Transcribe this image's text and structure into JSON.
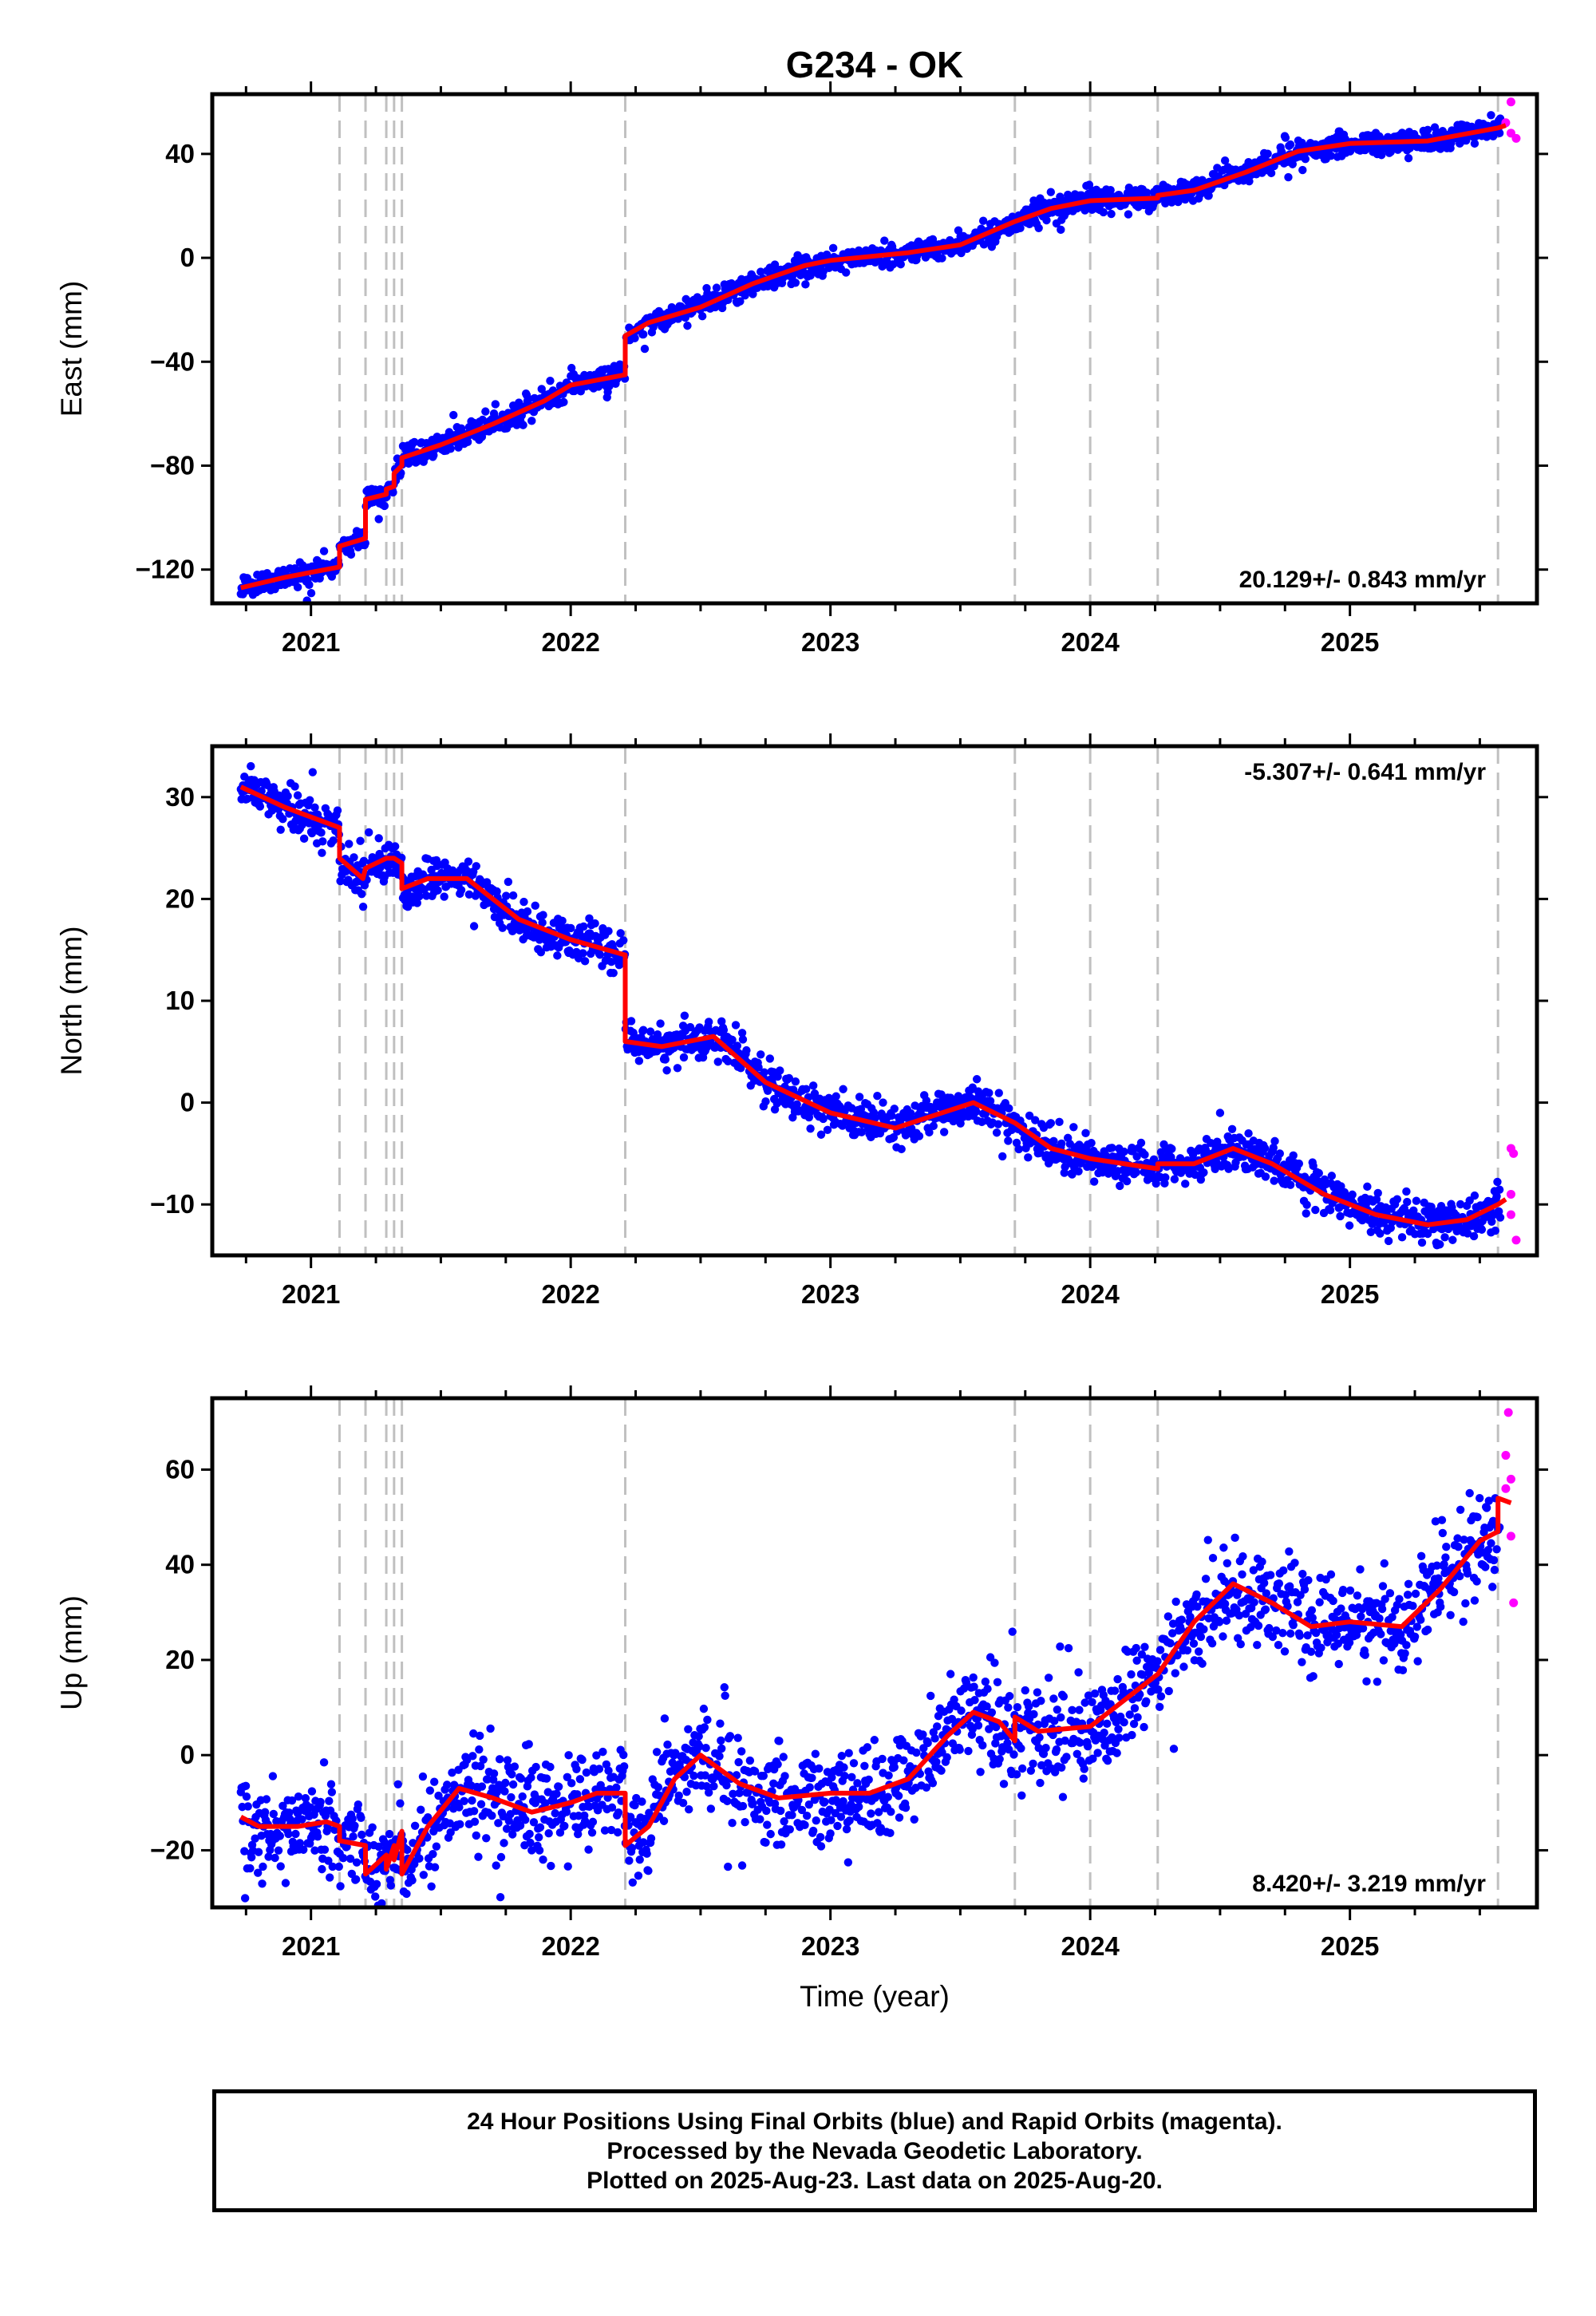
{
  "title": "G234 - OK",
  "colors": {
    "final_orbits": "#0000ff",
    "rapid_orbits": "#ff00ff",
    "model": "#ff0000",
    "event_line": "#c0c0c0"
  },
  "caption": {
    "line1": "24 Hour Positions Using Final Orbits (blue) and Rapid Orbits (magenta).",
    "line2": "Processed by the Nevada Geodetic Laboratory.",
    "line3": "Plotted on 2025-Aug-23. Last data on 2025-Aug-20."
  },
  "chart_data": [
    {
      "type": "scatter",
      "component": "east",
      "title": "G234 - OK",
      "xlabel": "",
      "ylabel": "East (mm)",
      "xlim": [
        2020.62,
        2025.72
      ],
      "ylim": [
        -133,
        63
      ],
      "xticks": [
        2021,
        2022,
        2023,
        2024,
        2025
      ],
      "yticks": [
        -120,
        -80,
        -40,
        0,
        40
      ],
      "rate_label": "20.129+/- 0.843 mm/yr",
      "rate_position": "bottom-right",
      "event_lines": [
        2021.11,
        2021.21,
        2021.29,
        2021.32,
        2021.35,
        2022.21,
        2023.71,
        2024.0,
        2024.26,
        2025.57
      ],
      "model_knots": [
        [
          2020.73,
          -127
        ],
        [
          2020.9,
          -123
        ],
        [
          2021.11,
          -119
        ],
        [
          2021.11,
          -111
        ],
        [
          2021.21,
          -108
        ],
        [
          2021.21,
          -93
        ],
        [
          2021.29,
          -91
        ],
        [
          2021.29,
          -89
        ],
        [
          2021.32,
          -88
        ],
        [
          2021.32,
          -83
        ],
        [
          2021.35,
          -80
        ],
        [
          2021.35,
          -77
        ],
        [
          2021.5,
          -72
        ],
        [
          2021.7,
          -64
        ],
        [
          2021.9,
          -55
        ],
        [
          2022.0,
          -49
        ],
        [
          2022.21,
          -45
        ],
        [
          2022.21,
          -30
        ],
        [
          2022.3,
          -25
        ],
        [
          2022.5,
          -19
        ],
        [
          2022.7,
          -10
        ],
        [
          2022.9,
          -3
        ],
        [
          2023.0,
          -1
        ],
        [
          2023.3,
          2
        ],
        [
          2023.5,
          5
        ],
        [
          2023.71,
          14
        ],
        [
          2023.85,
          19
        ],
        [
          2024.0,
          22
        ],
        [
          2024.26,
          23
        ],
        [
          2024.26,
          24
        ],
        [
          2024.4,
          26
        ],
        [
          2024.6,
          33
        ],
        [
          2024.8,
          41
        ],
        [
          2025.0,
          44
        ],
        [
          2025.3,
          45
        ],
        [
          2025.57,
          50
        ],
        [
          2025.6,
          51
        ]
      ],
      "scatter_sigma": 2.2,
      "rapid_points": [
        [
          2025.62,
          60
        ],
        [
          2025.6,
          52
        ],
        [
          2025.62,
          48
        ],
        [
          2025.64,
          46
        ]
      ]
    },
    {
      "type": "scatter",
      "component": "north",
      "xlabel": "",
      "ylabel": "North (mm)",
      "xlim": [
        2020.62,
        2025.72
      ],
      "ylim": [
        -15,
        35
      ],
      "xticks": [
        2021,
        2022,
        2023,
        2024,
        2025
      ],
      "yticks": [
        -10,
        0,
        10,
        20,
        30
      ],
      "rate_label": "-5.307+/- 0.641 mm/yr",
      "rate_position": "top-right",
      "event_lines": [
        2021.11,
        2021.21,
        2021.29,
        2021.32,
        2021.35,
        2022.21,
        2023.71,
        2024.0,
        2024.26,
        2025.57
      ],
      "model_knots": [
        [
          2020.73,
          31
        ],
        [
          2020.9,
          29
        ],
        [
          2021.11,
          27
        ],
        [
          2021.11,
          24
        ],
        [
          2021.2,
          22
        ],
        [
          2021.21,
          23
        ],
        [
          2021.29,
          24
        ],
        [
          2021.32,
          24
        ],
        [
          2021.35,
          23.5
        ],
        [
          2021.35,
          21
        ],
        [
          2021.45,
          22
        ],
        [
          2021.6,
          22
        ],
        [
          2021.8,
          18
        ],
        [
          2022.0,
          16
        ],
        [
          2022.21,
          14.5
        ],
        [
          2022.21,
          6
        ],
        [
          2022.35,
          5.5
        ],
        [
          2022.55,
          6.5
        ],
        [
          2022.75,
          2
        ],
        [
          2023.0,
          -1
        ],
        [
          2023.25,
          -2.5
        ],
        [
          2023.55,
          0
        ],
        [
          2023.71,
          -2
        ],
        [
          2023.85,
          -4.5
        ],
        [
          2024.0,
          -5.5
        ],
        [
          2024.26,
          -6.5
        ],
        [
          2024.26,
          -6
        ],
        [
          2024.4,
          -6
        ],
        [
          2024.55,
          -4.5
        ],
        [
          2024.7,
          -6
        ],
        [
          2024.9,
          -9
        ],
        [
          2025.1,
          -11
        ],
        [
          2025.3,
          -12
        ],
        [
          2025.45,
          -11.5
        ],
        [
          2025.57,
          -10
        ],
        [
          2025.6,
          -9.5
        ]
      ],
      "scatter_sigma": 1.0,
      "rapid_points": [
        [
          2025.62,
          -4.5
        ],
        [
          2025.63,
          -5
        ],
        [
          2025.62,
          -9
        ],
        [
          2025.62,
          -11
        ],
        [
          2025.64,
          -13.5
        ]
      ]
    },
    {
      "type": "scatter",
      "component": "up",
      "xlabel": "Time (year)",
      "ylabel": "Up (mm)",
      "xlim": [
        2020.62,
        2025.72
      ],
      "ylim": [
        -32,
        75
      ],
      "xticks": [
        2021,
        2022,
        2023,
        2024,
        2025
      ],
      "yticks": [
        -20,
        0,
        20,
        40,
        60
      ],
      "rate_label": "8.420+/- 3.219 mm/yr",
      "rate_position": "bottom-right",
      "event_lines": [
        2021.11,
        2021.21,
        2021.29,
        2021.32,
        2021.35,
        2022.21,
        2023.71,
        2024.0,
        2024.26,
        2025.57
      ],
      "model_knots": [
        [
          2020.73,
          -13
        ],
        [
          2020.8,
          -15
        ],
        [
          2020.95,
          -15
        ],
        [
          2021.06,
          -14
        ],
        [
          2021.11,
          -15
        ],
        [
          2021.11,
          -18
        ],
        [
          2021.21,
          -19
        ],
        [
          2021.21,
          -25
        ],
        [
          2021.29,
          -21
        ],
        [
          2021.29,
          -24
        ],
        [
          2021.32,
          -19
        ],
        [
          2021.32,
          -22
        ],
        [
          2021.35,
          -16
        ],
        [
          2021.35,
          -25
        ],
        [
          2021.45,
          -15
        ],
        [
          2021.57,
          -7
        ],
        [
          2021.7,
          -9
        ],
        [
          2021.85,
          -12
        ],
        [
          2022.0,
          -10
        ],
        [
          2022.1,
          -8
        ],
        [
          2022.21,
          -8
        ],
        [
          2022.21,
          -19
        ],
        [
          2022.3,
          -15
        ],
        [
          2022.4,
          -5
        ],
        [
          2022.5,
          0
        ],
        [
          2022.65,
          -6
        ],
        [
          2022.8,
          -9
        ],
        [
          2023.0,
          -8
        ],
        [
          2023.15,
          -8
        ],
        [
          2023.3,
          -5
        ],
        [
          2023.45,
          4
        ],
        [
          2023.55,
          9
        ],
        [
          2023.65,
          7
        ],
        [
          2023.71,
          3
        ],
        [
          2023.71,
          8
        ],
        [
          2023.8,
          5
        ],
        [
          2024.0,
          6
        ],
        [
          2024.26,
          17
        ],
        [
          2024.4,
          28
        ],
        [
          2024.55,
          36
        ],
        [
          2024.7,
          32
        ],
        [
          2024.85,
          27
        ],
        [
          2025.0,
          28
        ],
        [
          2025.2,
          27
        ],
        [
          2025.35,
          35
        ],
        [
          2025.5,
          45
        ],
        [
          2025.57,
          47
        ],
        [
          2025.57,
          54
        ],
        [
          2025.62,
          53
        ]
      ],
      "scatter_sigma": 5.0,
      "rapid_points": [
        [
          2025.61,
          72
        ],
        [
          2025.6,
          63
        ],
        [
          2025.62,
          58
        ],
        [
          2025.6,
          56
        ],
        [
          2025.62,
          46
        ],
        [
          2025.63,
          32
        ]
      ]
    }
  ]
}
